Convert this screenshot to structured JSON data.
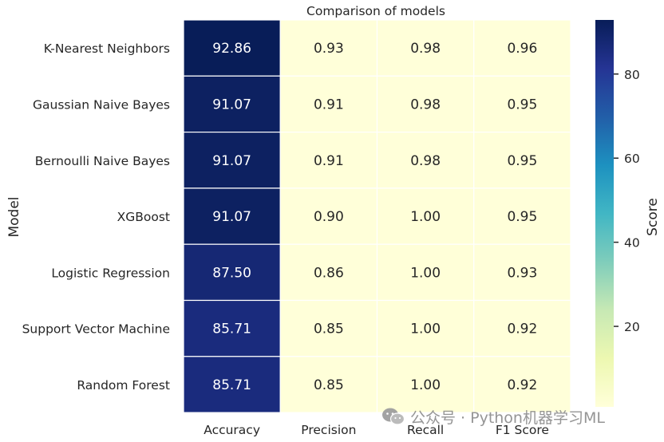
{
  "chart_data": {
    "type": "heatmap",
    "title": "Comparison of models",
    "ylabel": "Model",
    "colorbar_label": "Score",
    "colormap": "YlGnBu",
    "rows": [
      "K-Nearest Neighbors",
      "Gaussian Naive Bayes",
      "Bernoulli Naive Bayes",
      "XGBoost",
      "Logistic Regression",
      "Support Vector Machine",
      "Random Forest"
    ],
    "columns": [
      "Accuracy",
      "Precision",
      "Recall",
      "F1 Score"
    ],
    "values": [
      [
        92.86,
        0.93,
        0.98,
        0.96
      ],
      [
        91.07,
        0.91,
        0.98,
        0.95
      ],
      [
        91.07,
        0.91,
        0.98,
        0.95
      ],
      [
        91.07,
        0.9,
        1.0,
        0.95
      ],
      [
        87.5,
        0.86,
        1.0,
        0.93
      ],
      [
        85.71,
        0.85,
        1.0,
        0.92
      ],
      [
        85.71,
        0.85,
        1.0,
        0.92
      ]
    ],
    "value_format": "2 decimals",
    "vmin": 0.85,
    "vmax": 92.86,
    "colorbar_ticks": [
      20,
      40,
      60,
      80
    ]
  },
  "watermark": {
    "text": "公众号 · Python机器学习ML",
    "icon": "wechat-icon"
  }
}
